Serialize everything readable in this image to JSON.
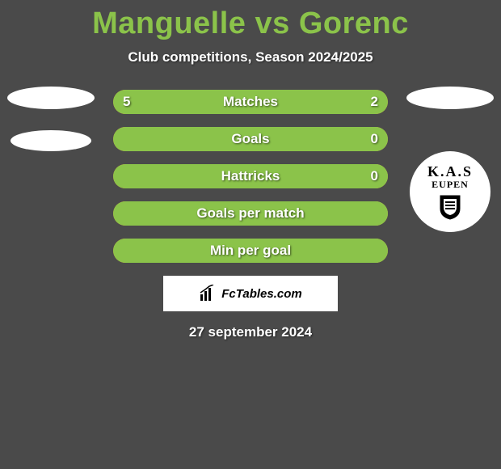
{
  "background_color": "#4a4a4a",
  "title": {
    "text": "Manguelle vs Gorenc",
    "color": "#8bc34a",
    "fontsize": 38
  },
  "subtitle": {
    "text": "Club competitions, Season 2024/2025",
    "color": "#ffffff",
    "fontsize": 17
  },
  "left_player": {
    "ellipse_color": "#ffffff"
  },
  "right_player": {
    "ellipse_color": "#ffffff",
    "logo_bg": "#ffffff",
    "logo_text_color": "#000000",
    "logo_line1": "K.A.S",
    "logo_line2": "EUPEN"
  },
  "bars": {
    "track_color": "#e8a23a",
    "left_fill_color": "#8bc34a",
    "right_fill_color": "#8bc34a",
    "text_color": "#ffffff",
    "rows": [
      {
        "label": "Matches",
        "left_val": "5",
        "right_val": "2",
        "left_pct": 70,
        "right_pct": 30
      },
      {
        "label": "Goals",
        "left_val": "",
        "right_val": "0",
        "left_pct": 100,
        "right_pct": 0
      },
      {
        "label": "Hattricks",
        "left_val": "",
        "right_val": "0",
        "left_pct": 100,
        "right_pct": 0
      },
      {
        "label": "Goals per match",
        "left_val": "",
        "right_val": "",
        "left_pct": 100,
        "right_pct": 0
      },
      {
        "label": "Min per goal",
        "left_val": "",
        "right_val": "",
        "left_pct": 100,
        "right_pct": 0
      }
    ]
  },
  "footer_box": {
    "bg_color": "#ffffff",
    "text_color": "#000000",
    "text": "FcTables.com"
  },
  "footer_date": {
    "text": "27 september 2024",
    "color": "#ffffff",
    "fontsize": 17
  }
}
